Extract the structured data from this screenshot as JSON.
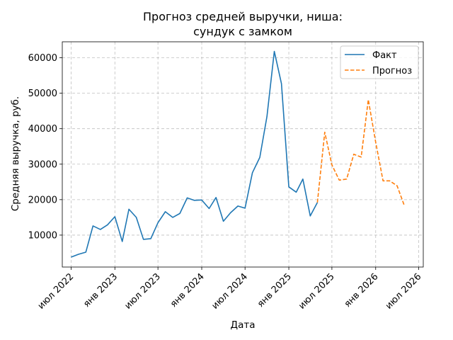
{
  "chart_data": {
    "type": "line",
    "title": "Прогноз средней выручки, ниша:\nсундук с замком",
    "xlabel": "Дата",
    "ylabel": "Средняя выручка, руб.",
    "xlim": [
      "2022-05-25",
      "2026-07-20"
    ],
    "ylim": [
      1000,
      64500
    ],
    "grid": true,
    "legend_position": "top-right",
    "x_ticks": [
      {
        "date": "2022-07-01",
        "label": "июл 2022"
      },
      {
        "date": "2023-01-01",
        "label": "янв 2023"
      },
      {
        "date": "2023-07-01",
        "label": "июл 2023"
      },
      {
        "date": "2024-01-01",
        "label": "янв 2024"
      },
      {
        "date": "2024-07-01",
        "label": "июл 2024"
      },
      {
        "date": "2025-01-01",
        "label": "янв 2025"
      },
      {
        "date": "2025-07-01",
        "label": "июл 2025"
      },
      {
        "date": "2026-01-01",
        "label": "янв 2026"
      },
      {
        "date": "2026-07-01",
        "label": "июл 2026"
      }
    ],
    "y_ticks": [
      {
        "value": 10000,
        "label": "10000"
      },
      {
        "value": 20000,
        "label": "20000"
      },
      {
        "value": 30000,
        "label": "30000"
      },
      {
        "value": 40000,
        "label": "40000"
      },
      {
        "value": 50000,
        "label": "50000"
      },
      {
        "value": 60000,
        "label": "60000"
      }
    ],
    "series": [
      {
        "name": "Факт",
        "color": "#1f77b4",
        "style": "solid",
        "points": [
          {
            "x": "2022-07-01",
            "y": 3800
          },
          {
            "x": "2022-08-01",
            "y": 4600
          },
          {
            "x": "2022-09-01",
            "y": 5200
          },
          {
            "x": "2022-10-01",
            "y": 12600
          },
          {
            "x": "2022-11-01",
            "y": 11600
          },
          {
            "x": "2022-12-01",
            "y": 12900
          },
          {
            "x": "2023-01-01",
            "y": 15200
          },
          {
            "x": "2023-02-01",
            "y": 8200
          },
          {
            "x": "2023-03-01",
            "y": 17300
          },
          {
            "x": "2023-04-01",
            "y": 15000
          },
          {
            "x": "2023-05-01",
            "y": 8800
          },
          {
            "x": "2023-06-01",
            "y": 9000
          },
          {
            "x": "2023-07-01",
            "y": 13500
          },
          {
            "x": "2023-08-01",
            "y": 16600
          },
          {
            "x": "2023-09-01",
            "y": 15000
          },
          {
            "x": "2023-10-01",
            "y": 16100
          },
          {
            "x": "2023-11-01",
            "y": 20500
          },
          {
            "x": "2023-12-01",
            "y": 19800
          },
          {
            "x": "2024-01-01",
            "y": 19900
          },
          {
            "x": "2024-02-01",
            "y": 17500
          },
          {
            "x": "2024-03-01",
            "y": 20600
          },
          {
            "x": "2024-04-01",
            "y": 13900
          },
          {
            "x": "2024-05-01",
            "y": 16300
          },
          {
            "x": "2024-06-01",
            "y": 18200
          },
          {
            "x": "2024-07-01",
            "y": 17600
          },
          {
            "x": "2024-08-01",
            "y": 27600
          },
          {
            "x": "2024-09-01",
            "y": 31900
          },
          {
            "x": "2024-10-01",
            "y": 43400
          },
          {
            "x": "2024-11-01",
            "y": 61800
          },
          {
            "x": "2024-12-01",
            "y": 52700
          },
          {
            "x": "2025-01-01",
            "y": 23600
          },
          {
            "x": "2025-02-01",
            "y": 22100
          },
          {
            "x": "2025-03-01",
            "y": 25800
          },
          {
            "x": "2025-04-01",
            "y": 15400
          },
          {
            "x": "2025-05-01",
            "y": 19200
          }
        ]
      },
      {
        "name": "Прогноз",
        "color": "#ff7f0e",
        "style": "dashed",
        "points": [
          {
            "x": "2025-05-01",
            "y": 19200
          },
          {
            "x": "2025-06-01",
            "y": 39000
          },
          {
            "x": "2025-07-01",
            "y": 29800
          },
          {
            "x": "2025-08-01",
            "y": 25500
          },
          {
            "x": "2025-09-01",
            "y": 25800
          },
          {
            "x": "2025-10-01",
            "y": 32800
          },
          {
            "x": "2025-11-01",
            "y": 32000
          },
          {
            "x": "2025-12-01",
            "y": 48200
          },
          {
            "x": "2026-01-01",
            "y": 36200
          },
          {
            "x": "2026-02-01",
            "y": 25300
          },
          {
            "x": "2026-03-01",
            "y": 25300
          },
          {
            "x": "2026-04-01",
            "y": 23900
          },
          {
            "x": "2026-05-01",
            "y": 18400
          }
        ]
      }
    ]
  }
}
